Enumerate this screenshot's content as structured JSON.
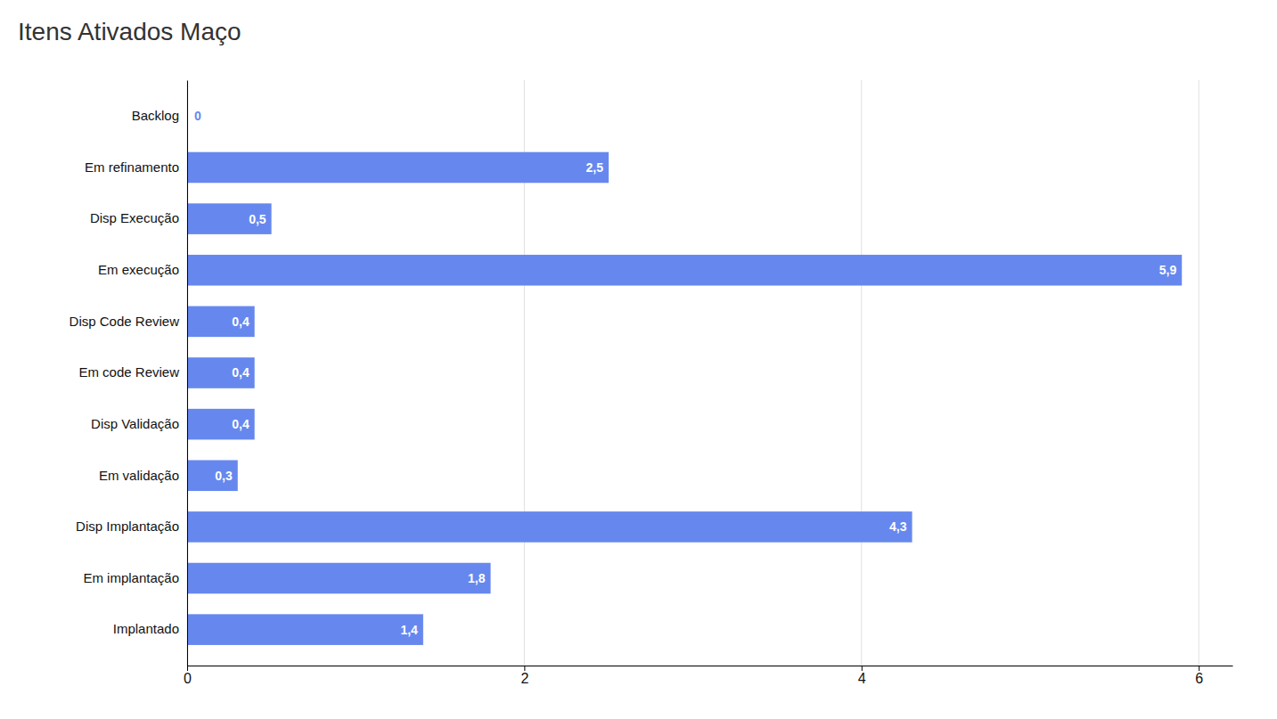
{
  "chart_data": {
    "type": "bar",
    "orientation": "horizontal",
    "title": "Itens Ativados Maço",
    "categories": [
      "Backlog",
      "Em refinamento",
      "Disp Execução",
      "Em execução",
      "Disp Code Review",
      "Em code Review",
      "Disp Validação",
      "Em validação",
      "Disp Implantação",
      "Em implantação",
      "Implantado"
    ],
    "values": [
      0,
      2.5,
      0.5,
      5.9,
      0.4,
      0.4,
      0.4,
      0.3,
      4.3,
      1.8,
      1.4
    ],
    "value_labels": [
      "0",
      "2,5",
      "0,5",
      "5,9",
      "0,4",
      "0,4",
      "0,4",
      "0,3",
      "4,3",
      "1,8",
      "1,4"
    ],
    "data_labels": true,
    "color": "#6688EE",
    "xlim": [
      0,
      6.2
    ],
    "xticks": [
      0,
      2,
      4,
      6
    ],
    "grid": true
  }
}
